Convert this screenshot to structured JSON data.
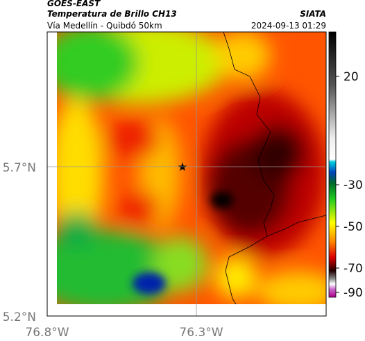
{
  "header": {
    "source": "GOES-EAST",
    "title": "Temperatura de Brillo CH13",
    "org": "SIATA",
    "route": "Vía Medellín - Quibdó 50km",
    "timestamp": "2024-09-13 01:29"
  },
  "map": {
    "lat_labels": [
      "5.7°N",
      "5.2°N"
    ],
    "lon_labels": [
      "76.8°W",
      "76.3°W"
    ]
  },
  "colorbar": {
    "ticks": [
      20,
      -30,
      -50,
      -70,
      -90
    ]
  }
}
